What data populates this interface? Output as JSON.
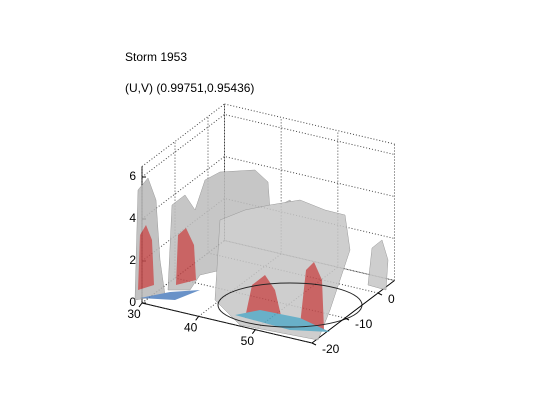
{
  "chart_data": {
    "type": "surface3d",
    "title": "Storm 1953",
    "subtitle": "(U,V) (0.99751,0.95436)",
    "xlim": [
      30,
      60
    ],
    "xticks": [
      30,
      40,
      50
    ],
    "ylim": [
      -20,
      5
    ],
    "yticks": [
      -20,
      -10,
      0
    ],
    "zlim": [
      0,
      6.5
    ],
    "zticks": [
      0,
      2,
      4,
      6
    ],
    "grid": true
  }
}
